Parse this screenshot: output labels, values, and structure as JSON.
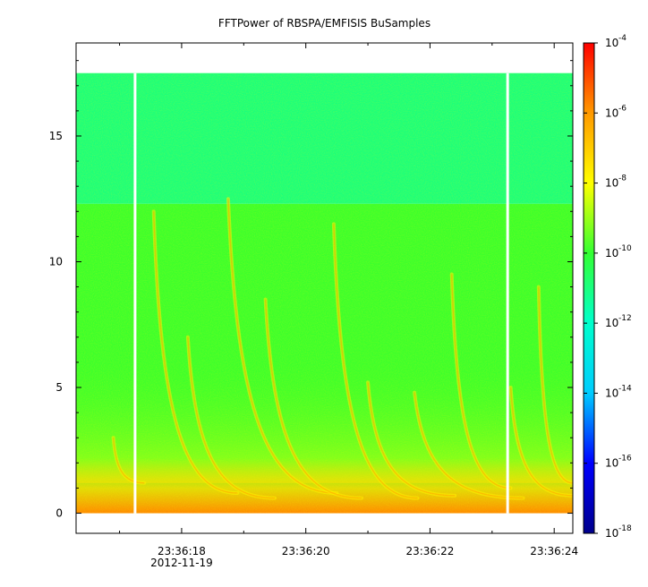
{
  "chart_data": {
    "type": "heatmap",
    "title": "FFTPower of RBSPA/EMFISIS  BuSamples",
    "xlabel": "",
    "ylabel": "",
    "date_label": "2012-11-19",
    "x_time_range": [
      "23:36:16.30",
      "23:36:24.30"
    ],
    "x_ticks": [
      "23:36:18",
      "23:36:20",
      "23:36:22",
      "23:36:24"
    ],
    "x_minor_ticks": [
      "23:36:17",
      "23:36:19",
      "23:36:21",
      "23:36:23"
    ],
    "ylim": [
      -0.8,
      18.7
    ],
    "y_ticks": [
      0,
      5,
      10,
      15
    ],
    "data_extent_y": [
      0,
      17.5
    ],
    "green_cyan_boundary_y": 12.3,
    "data_gaps": [
      "23:36:17.25",
      "23:36:23.25"
    ],
    "chorus_elements": [
      {
        "start": "23:36:16.9",
        "end": "23:36:17.4",
        "f_top": 3,
        "f_bottom": 1.2
      },
      {
        "start": "23:36:17.55",
        "end": "23:36:18.9",
        "f_top": 12,
        "f_bottom": 0.8
      },
      {
        "start": "23:36:18.1",
        "end": "23:36:19.5",
        "f_top": 7,
        "f_bottom": 0.6
      },
      {
        "start": "23:36:18.75",
        "end": "23:36:20.5",
        "f_top": 12.5,
        "f_bottom": 0.8
      },
      {
        "start": "23:36:19.35",
        "end": "23:36:20.9",
        "f_top": 8.5,
        "f_bottom": 0.6
      },
      {
        "start": "23:36:20.45",
        "end": "23:36:21.8",
        "f_top": 11.5,
        "f_bottom": 0.6
      },
      {
        "start": "23:36:21.0",
        "end": "23:36:22.4",
        "f_top": 5.2,
        "f_bottom": 0.7
      },
      {
        "start": "23:36:21.75",
        "end": "23:36:23.5",
        "f_top": 4.8,
        "f_bottom": 0.6
      },
      {
        "start": "23:36:22.35",
        "end": "23:36:23.3",
        "f_top": 9.5,
        "f_bottom": 1.0
      },
      {
        "start": "23:36:23.3",
        "end": "23:36:24.3",
        "f_top": 5.0,
        "f_bottom": 0.7
      },
      {
        "start": "23:36:23.75",
        "end": "23:36:24.3",
        "f_top": 9.0,
        "f_bottom": 1.2
      }
    ],
    "colorbar": {
      "scale": "log",
      "range": [
        1e-18,
        0.0001
      ],
      "tick_exponents": [
        -4,
        -6,
        -8,
        -10,
        -12,
        -14,
        -16,
        -18
      ],
      "tick_base": "10",
      "colors": [
        "#00008c",
        "#0000ff",
        "#00ccff",
        "#00ffcc",
        "#33ff33",
        "#ffff00",
        "#ff9900",
        "#ff0000"
      ]
    }
  }
}
